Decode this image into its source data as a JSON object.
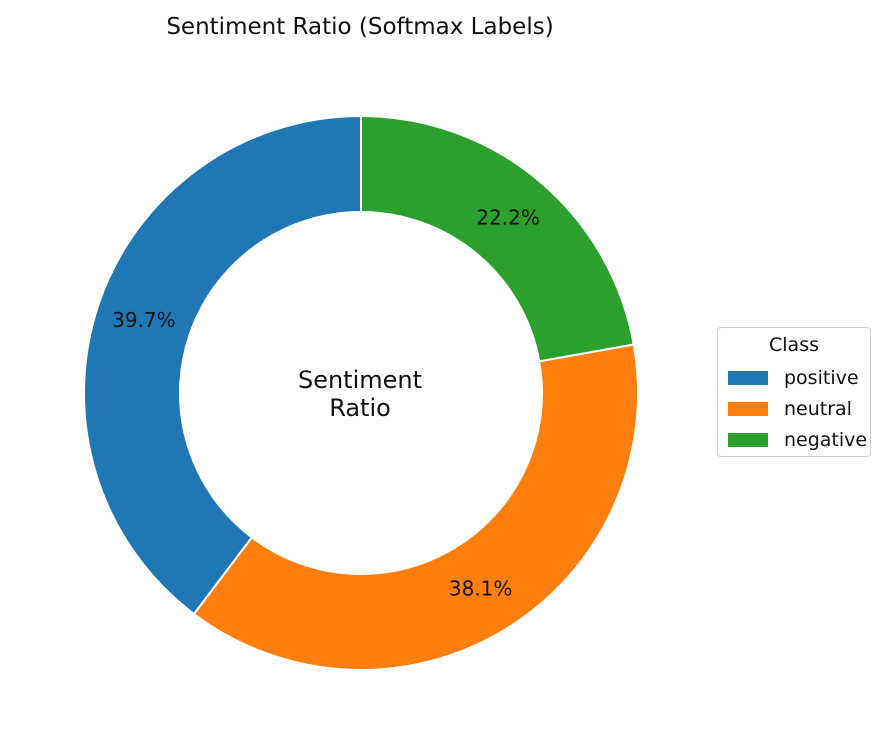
{
  "chart_data": {
    "type": "pie",
    "style": "donut",
    "title": "Sentiment Ratio (Softmax Labels)",
    "center_text": [
      "Sentiment",
      "Ratio"
    ],
    "slices": [
      {
        "label": "positive",
        "value": 39.7,
        "display": "39.7%",
        "color": "#1f77b4"
      },
      {
        "label": "neutral",
        "value": 38.1,
        "display": "38.1%",
        "color": "#ff7f0e"
      },
      {
        "label": "negative",
        "value": 22.2,
        "display": "22.2%",
        "color": "#2ca02c"
      }
    ],
    "start_angle": 90,
    "direction": "counterclockwise",
    "legend": {
      "title": "Class",
      "placement": "right",
      "entries": [
        "positive",
        "neutral",
        "negative"
      ]
    }
  }
}
